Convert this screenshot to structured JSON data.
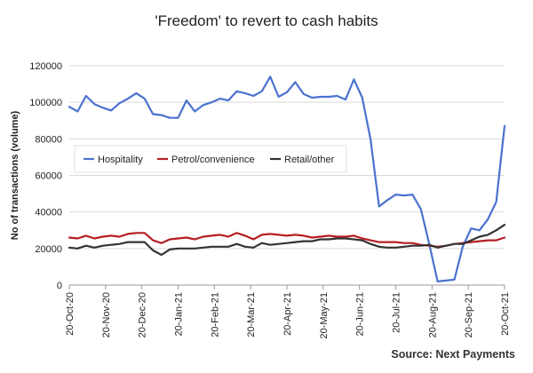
{
  "chart_data": {
    "type": "line",
    "title": "'Freedom' to revert to cash habits",
    "ylabel": "No of transactions (volume)",
    "xlabel": "",
    "ylim": [
      0,
      120000
    ],
    "yticks": [
      0,
      20000,
      40000,
      60000,
      80000,
      100000,
      120000
    ],
    "x_tick_labels": [
      "20-Oct-20",
      "20-Nov-20",
      "20-Dec-20",
      "20-Jan-21",
      "20-Feb-21",
      "20-Mar-21",
      "20-Apr-21",
      "20-May-21",
      "20-Jun-21",
      "20-Jul-21",
      "20-Aug-21",
      "20-Sep-21",
      "20-Oct-21"
    ],
    "grid": true,
    "legend_position": "center-left",
    "series": [
      {
        "name": "Hospitality",
        "color": "#4a72d0",
        "values": [
          97500,
          95000,
          103500,
          99000,
          97000,
          95500,
          99500,
          102000,
          105000,
          102000,
          93500,
          93000,
          91500,
          91500,
          101000,
          95000,
          98500,
          100000,
          102000,
          101000,
          106000,
          105000,
          103500,
          106000,
          114000,
          103000,
          105500,
          111000,
          104500,
          102500,
          103000,
          103000,
          103500,
          101500,
          112500,
          102500,
          79500,
          43000,
          46500,
          49500,
          49000,
          49500,
          41500,
          22500,
          2000,
          2500,
          3000,
          21000,
          31000,
          30000,
          36000,
          45500,
          87000
        ]
      },
      {
        "name": "Petrol/convenience",
        "color": "#b51f24",
        "values": [
          26000,
          25500,
          27000,
          25500,
          26500,
          27000,
          26500,
          28000,
          28500,
          28500,
          24500,
          23000,
          25000,
          25500,
          26000,
          25000,
          26500,
          27000,
          27500,
          26500,
          28500,
          27000,
          25000,
          27500,
          28000,
          27500,
          27000,
          27500,
          27000,
          26000,
          26500,
          27000,
          26500,
          26500,
          27000,
          25500,
          24500,
          23500,
          23500,
          23500,
          23000,
          23000,
          22000,
          21500,
          21000,
          21500,
          22500,
          23000,
          23500,
          24000,
          24500,
          24500,
          26000
        ]
      },
      {
        "name": "Retail/other",
        "color": "#333333",
        "values": [
          20500,
          20000,
          21500,
          20500,
          21500,
          22000,
          22500,
          23500,
          23500,
          23500,
          19000,
          16500,
          19500,
          20000,
          20000,
          20000,
          20500,
          21000,
          21000,
          21000,
          22500,
          21000,
          20500,
          23000,
          22000,
          22500,
          23000,
          23500,
          24000,
          24000,
          25000,
          25000,
          25500,
          25500,
          25000,
          24500,
          22500,
          21000,
          20500,
          20500,
          21000,
          21500,
          21500,
          22000,
          20500,
          21500,
          22500,
          22500,
          24500,
          26500,
          27500,
          30000,
          33000
        ]
      }
    ]
  },
  "source": "Source: Next Payments"
}
